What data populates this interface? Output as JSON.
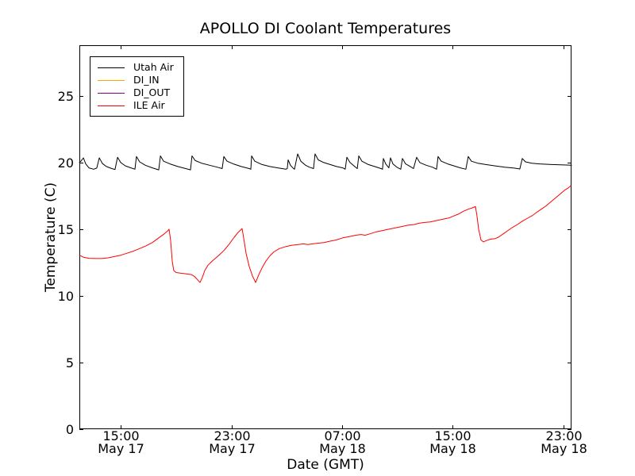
{
  "figure": {
    "background": "#ffffff",
    "frame_color": "#000000",
    "tick_color": "#000000"
  },
  "chart_data": {
    "type": "line",
    "title": "APOLLO DI Coolant Temperatures",
    "xlabel": "Date (GMT)",
    "ylabel": "Temperature (C)",
    "x_axis_note": "x values are hours elapsed; hour 3 = 15:00 May 17 GMT",
    "xlim": [
      0,
      35.6
    ],
    "ylim": [
      0,
      28.8
    ],
    "grid": false,
    "legend_position": "upper left",
    "x_ticks": [
      {
        "pos": 3,
        "time": "15:00",
        "date": "May 17"
      },
      {
        "pos": 11,
        "time": "23:00",
        "date": "May 17"
      },
      {
        "pos": 19,
        "time": "07:00",
        "date": "May 18"
      },
      {
        "pos": 27,
        "time": "15:00",
        "date": "May 18"
      },
      {
        "pos": 35,
        "time": "23:00",
        "date": "May 18"
      }
    ],
    "y_ticks": [
      0,
      5,
      10,
      15,
      20,
      25
    ],
    "series": [
      {
        "name": "Utah Air",
        "color": "#000000",
        "points": [
          [
            0.0,
            20.0
          ],
          [
            0.11,
            20.1
          ],
          [
            0.29,
            20.35
          ],
          [
            0.46,
            19.9
          ],
          [
            0.69,
            19.6
          ],
          [
            1.03,
            19.5
          ],
          [
            1.26,
            19.58
          ],
          [
            1.44,
            20.35
          ],
          [
            1.67,
            19.92
          ],
          [
            1.95,
            19.7
          ],
          [
            2.35,
            19.55
          ],
          [
            2.58,
            19.48
          ],
          [
            2.76,
            20.4
          ],
          [
            2.99,
            20.0
          ],
          [
            3.33,
            19.75
          ],
          [
            3.73,
            19.6
          ],
          [
            4.02,
            19.5
          ],
          [
            4.13,
            20.45
          ],
          [
            4.36,
            20.05
          ],
          [
            4.77,
            19.8
          ],
          [
            5.28,
            19.6
          ],
          [
            5.74,
            19.45
          ],
          [
            5.86,
            20.5
          ],
          [
            6.09,
            20.1
          ],
          [
            6.55,
            19.9
          ],
          [
            7.12,
            19.7
          ],
          [
            7.69,
            19.55
          ],
          [
            8.04,
            19.45
          ],
          [
            8.15,
            20.5
          ],
          [
            8.38,
            20.15
          ],
          [
            8.84,
            19.95
          ],
          [
            9.42,
            19.8
          ],
          [
            9.99,
            19.65
          ],
          [
            10.33,
            19.55
          ],
          [
            10.45,
            20.45
          ],
          [
            10.68,
            20.1
          ],
          [
            11.14,
            19.9
          ],
          [
            11.71,
            19.7
          ],
          [
            12.29,
            19.55
          ],
          [
            12.4,
            19.5
          ],
          [
            12.46,
            20.5
          ],
          [
            12.69,
            20.1
          ],
          [
            13.21,
            19.85
          ],
          [
            13.78,
            19.7
          ],
          [
            14.35,
            19.6
          ],
          [
            14.93,
            19.5
          ],
          [
            15.04,
            19.55
          ],
          [
            15.1,
            20.2
          ],
          [
            15.27,
            19.8
          ],
          [
            15.44,
            19.6
          ],
          [
            15.56,
            19.5
          ],
          [
            15.79,
            20.65
          ],
          [
            16.02,
            20.1
          ],
          [
            16.36,
            19.8
          ],
          [
            16.65,
            19.65
          ],
          [
            16.94,
            19.55
          ],
          [
            17.05,
            20.65
          ],
          [
            17.28,
            20.2
          ],
          [
            17.68,
            20.0
          ],
          [
            18.14,
            19.85
          ],
          [
            18.6,
            19.7
          ],
          [
            19.06,
            19.6
          ],
          [
            19.23,
            19.5
          ],
          [
            19.35,
            20.4
          ],
          [
            19.58,
            20.0
          ],
          [
            19.92,
            19.7
          ],
          [
            20.1,
            19.55
          ],
          [
            20.21,
            20.5
          ],
          [
            20.44,
            20.1
          ],
          [
            20.9,
            19.85
          ],
          [
            21.36,
            19.7
          ],
          [
            21.82,
            19.55
          ],
          [
            21.93,
            19.5
          ],
          [
            21.99,
            20.3
          ],
          [
            22.16,
            19.9
          ],
          [
            22.39,
            19.6
          ],
          [
            22.51,
            20.35
          ],
          [
            22.68,
            19.9
          ],
          [
            22.97,
            19.65
          ],
          [
            23.25,
            19.5
          ],
          [
            23.37,
            20.3
          ],
          [
            23.6,
            19.9
          ],
          [
            23.94,
            19.7
          ],
          [
            24.17,
            19.55
          ],
          [
            24.4,
            20.4
          ],
          [
            24.63,
            20.0
          ],
          [
            25.09,
            19.8
          ],
          [
            25.55,
            19.65
          ],
          [
            25.84,
            19.5
          ],
          [
            25.95,
            20.45
          ],
          [
            26.18,
            20.1
          ],
          [
            26.64,
            19.9
          ],
          [
            27.1,
            19.75
          ],
          [
            27.56,
            19.6
          ],
          [
            27.96,
            19.5
          ],
          [
            28.13,
            20.45
          ],
          [
            28.36,
            20.1
          ],
          [
            28.82,
            19.95
          ],
          [
            29.4,
            19.85
          ],
          [
            30.08,
            19.75
          ],
          [
            30.77,
            19.65
          ],
          [
            31.46,
            19.58
          ],
          [
            31.86,
            19.52
          ],
          [
            32.04,
            20.3
          ],
          [
            32.27,
            20.05
          ],
          [
            32.73,
            19.95
          ],
          [
            33.3,
            19.9
          ],
          [
            34.16,
            19.85
          ],
          [
            35.02,
            19.82
          ],
          [
            35.6,
            19.8
          ]
        ]
      },
      {
        "name": "DI_IN",
        "color": "#ffa500",
        "points": []
      },
      {
        "name": "DI_OUT",
        "color": "#800080",
        "points": []
      },
      {
        "name": "ILE Air",
        "color": "#ff0000",
        "points": [
          [
            0.0,
            13.05
          ],
          [
            0.29,
            12.9
          ],
          [
            0.69,
            12.82
          ],
          [
            1.15,
            12.8
          ],
          [
            1.61,
            12.8
          ],
          [
            2.07,
            12.85
          ],
          [
            2.53,
            12.95
          ],
          [
            2.99,
            13.05
          ],
          [
            3.44,
            13.2
          ],
          [
            3.9,
            13.35
          ],
          [
            4.36,
            13.55
          ],
          [
            4.82,
            13.75
          ],
          [
            5.28,
            14.0
          ],
          [
            5.74,
            14.35
          ],
          [
            6.14,
            14.65
          ],
          [
            6.37,
            14.85
          ],
          [
            6.49,
            15.0
          ],
          [
            6.6,
            14.2
          ],
          [
            6.72,
            12.6
          ],
          [
            6.83,
            11.9
          ],
          [
            7.0,
            11.75
          ],
          [
            7.35,
            11.7
          ],
          [
            7.75,
            11.65
          ],
          [
            8.1,
            11.6
          ],
          [
            8.33,
            11.45
          ],
          [
            8.56,
            11.2
          ],
          [
            8.73,
            11.0
          ],
          [
            8.9,
            11.4
          ],
          [
            9.07,
            11.9
          ],
          [
            9.3,
            12.3
          ],
          [
            9.65,
            12.65
          ],
          [
            10.05,
            13.0
          ],
          [
            10.45,
            13.4
          ],
          [
            10.85,
            13.9
          ],
          [
            11.2,
            14.4
          ],
          [
            11.48,
            14.75
          ],
          [
            11.77,
            15.05
          ],
          [
            11.89,
            14.3
          ],
          [
            12.06,
            13.2
          ],
          [
            12.29,
            12.2
          ],
          [
            12.52,
            11.5
          ],
          [
            12.75,
            11.0
          ],
          [
            12.98,
            11.6
          ],
          [
            13.21,
            12.1
          ],
          [
            13.49,
            12.6
          ],
          [
            13.78,
            13.0
          ],
          [
            14.07,
            13.3
          ],
          [
            14.47,
            13.55
          ],
          [
            14.93,
            13.7
          ],
          [
            15.39,
            13.8
          ],
          [
            15.85,
            13.85
          ],
          [
            16.19,
            13.9
          ],
          [
            16.54,
            13.85
          ],
          [
            16.88,
            13.9
          ],
          [
            17.22,
            13.95
          ],
          [
            17.68,
            14.0
          ],
          [
            18.14,
            14.1
          ],
          [
            18.6,
            14.2
          ],
          [
            19.06,
            14.35
          ],
          [
            19.52,
            14.45
          ],
          [
            19.98,
            14.55
          ],
          [
            20.38,
            14.6
          ],
          [
            20.67,
            14.55
          ],
          [
            21.01,
            14.65
          ],
          [
            21.47,
            14.8
          ],
          [
            21.93,
            14.9
          ],
          [
            22.39,
            15.0
          ],
          [
            22.85,
            15.1
          ],
          [
            23.31,
            15.2
          ],
          [
            23.77,
            15.3
          ],
          [
            24.23,
            15.35
          ],
          [
            24.57,
            15.45
          ],
          [
            24.92,
            15.5
          ],
          [
            25.38,
            15.55
          ],
          [
            25.84,
            15.65
          ],
          [
            26.3,
            15.75
          ],
          [
            26.76,
            15.85
          ],
          [
            27.1,
            16.0
          ],
          [
            27.45,
            16.15
          ],
          [
            27.79,
            16.35
          ],
          [
            28.13,
            16.5
          ],
          [
            28.42,
            16.6
          ],
          [
            28.65,
            16.7
          ],
          [
            28.76,
            16.0
          ],
          [
            28.88,
            15.0
          ],
          [
            29.05,
            14.2
          ],
          [
            29.22,
            14.05
          ],
          [
            29.45,
            14.15
          ],
          [
            29.74,
            14.25
          ],
          [
            30.08,
            14.3
          ],
          [
            30.31,
            14.4
          ],
          [
            30.66,
            14.65
          ],
          [
            31.0,
            14.9
          ],
          [
            31.35,
            15.15
          ],
          [
            31.69,
            15.35
          ],
          [
            32.04,
            15.6
          ],
          [
            32.38,
            15.8
          ],
          [
            32.73,
            16.0
          ],
          [
            33.07,
            16.25
          ],
          [
            33.41,
            16.5
          ],
          [
            33.76,
            16.75
          ],
          [
            34.1,
            17.05
          ],
          [
            34.45,
            17.35
          ],
          [
            34.79,
            17.65
          ],
          [
            35.14,
            17.95
          ],
          [
            35.37,
            18.1
          ],
          [
            35.54,
            18.25
          ]
        ]
      }
    ]
  }
}
